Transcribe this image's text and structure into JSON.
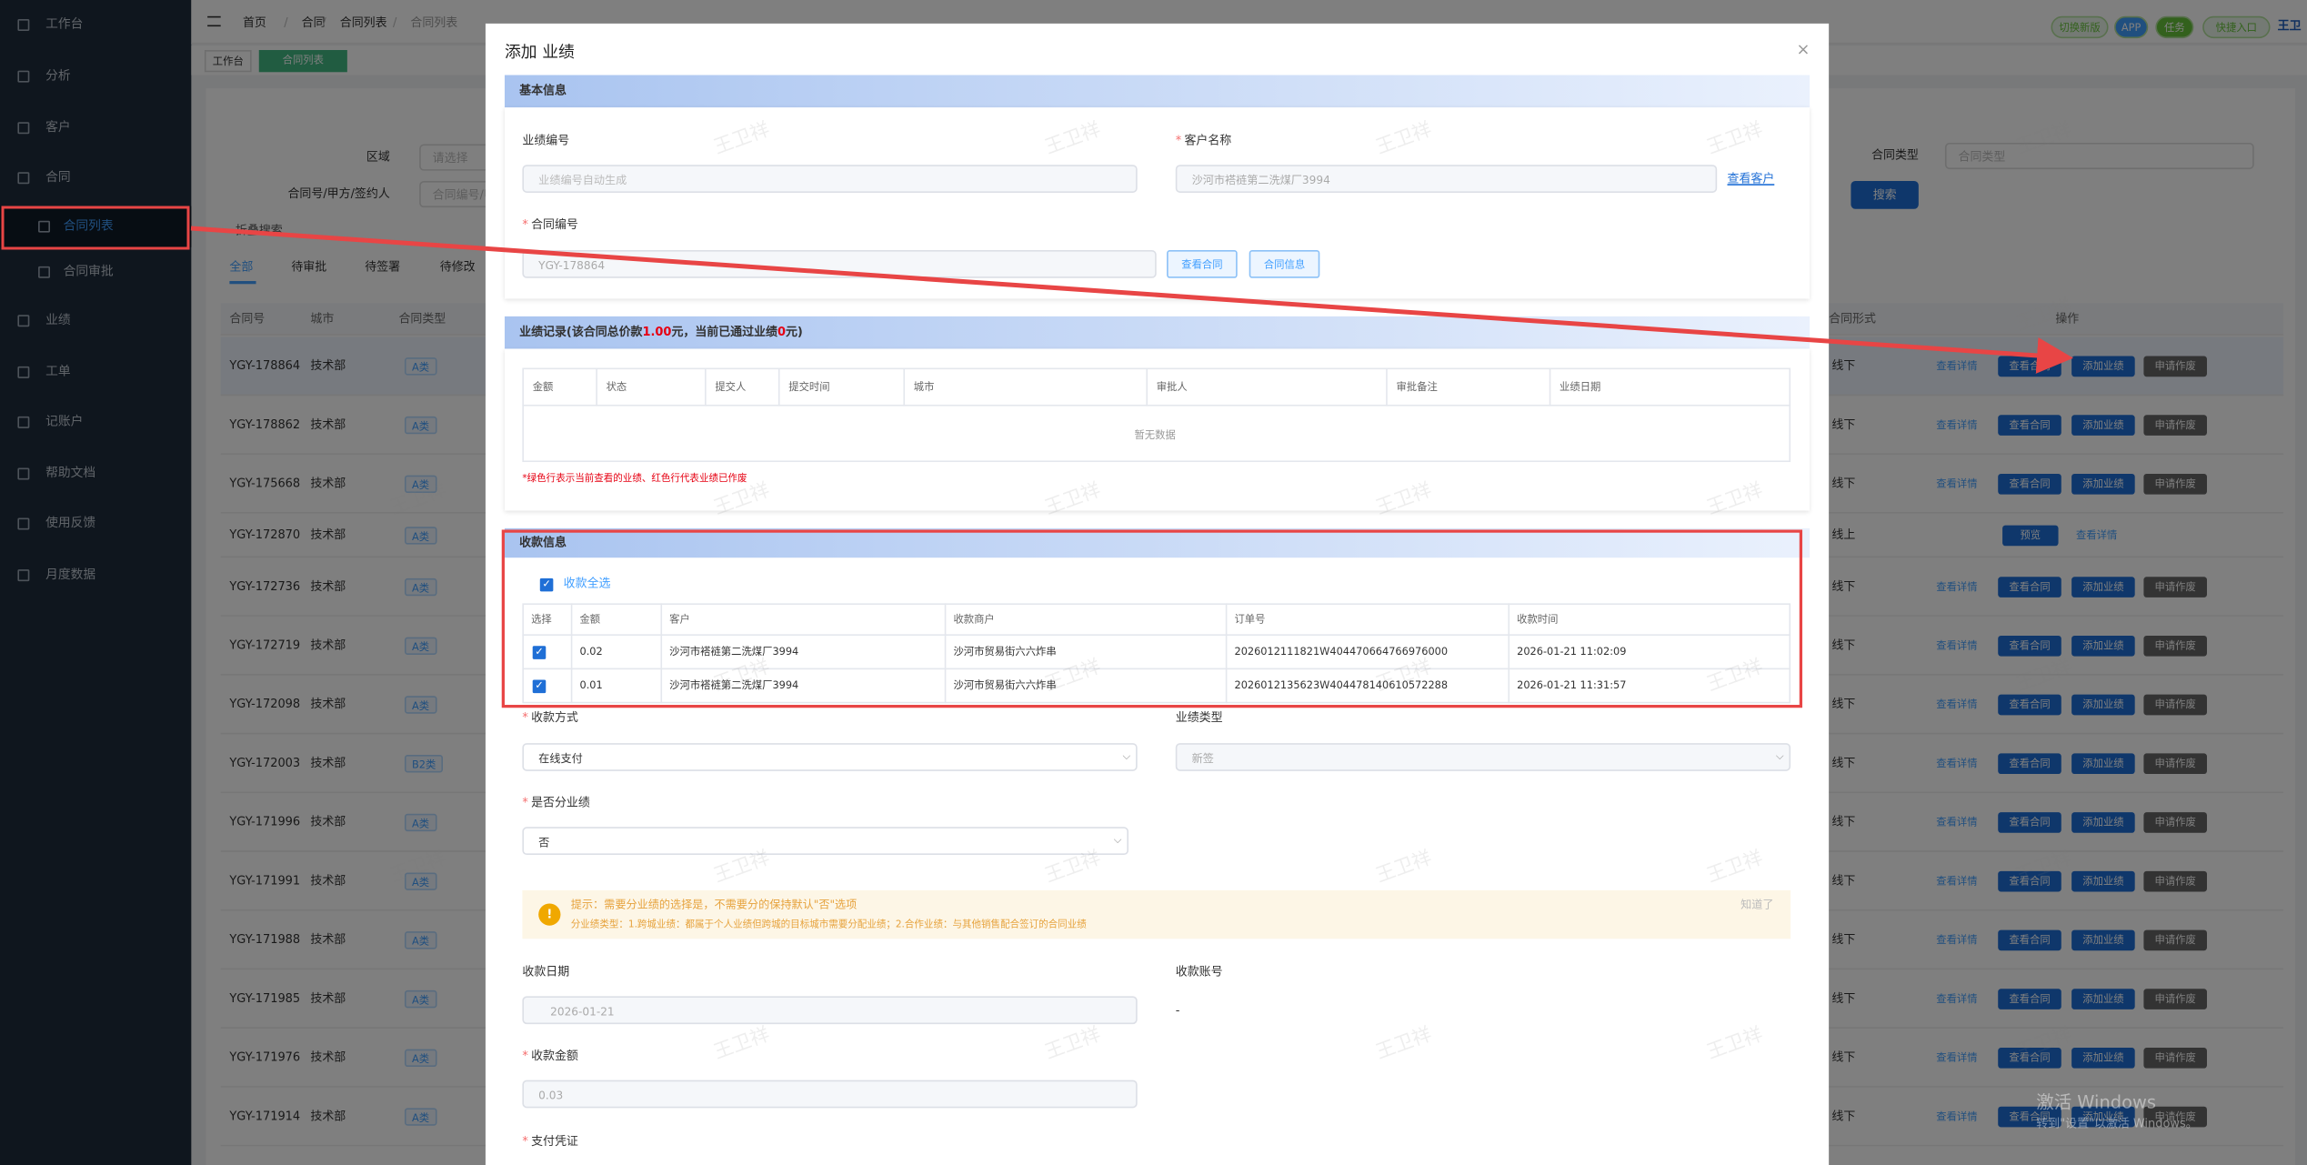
{
  "sidebar": {
    "items": [
      "工作台",
      "分析",
      "客户",
      "合同",
      "合同列表",
      "合同审批",
      "业绩",
      "工单",
      "记账户",
      "帮助文档",
      "使用反馈",
      "月度数据"
    ]
  },
  "header": {
    "breadcrumb": [
      "首页",
      "合同",
      "合同列表",
      "合同列表"
    ],
    "buttons": [
      "切换新版",
      "APP",
      "任务",
      "快捷入口"
    ],
    "user": "王卫"
  },
  "tabs": [
    "工作台",
    "合同列表"
  ],
  "filters": {
    "region_label": "区域",
    "region_placeholder": "请选择",
    "keyword_label": "合同号/甲方/签约人",
    "keyword_placeholder": "合同编号/甲方/签约人",
    "type_label": "合同类型",
    "type_placeholder": "合同类型",
    "search": "搜索",
    "collapse": "折叠搜索"
  },
  "list": {
    "status_tabs": [
      "全部",
      "待审批",
      "待签署",
      "待修改"
    ],
    "columns": [
      "合同号",
      "城市",
      "合同类型",
      "合同形式",
      "操作"
    ],
    "rows": [
      [
        "YGY-178864",
        "技术部",
        "A类",
        "线下"
      ],
      [
        "YGY-178862",
        "技术部",
        "A类",
        "线下"
      ],
      [
        "YGY-175668",
        "技术部",
        "A类",
        "线下"
      ],
      [
        "YGY-172870",
        "技术部",
        "A类",
        "线上"
      ],
      [
        "YGY-172736",
        "技术部",
        "A类",
        "线下"
      ],
      [
        "YGY-172719",
        "技术部",
        "A类",
        "线下"
      ],
      [
        "YGY-172098",
        "技术部",
        "A类",
        "线下"
      ],
      [
        "YGY-172003",
        "技术部",
        "B2类",
        "线下"
      ],
      [
        "YGY-171996",
        "技术部",
        "A类",
        "线下"
      ],
      [
        "YGY-171991",
        "技术部",
        "A类",
        "线下"
      ],
      [
        "YGY-171988",
        "技术部",
        "A类",
        "线下"
      ],
      [
        "YGY-171985",
        "技术部",
        "A类",
        "线下"
      ],
      [
        "YGY-171976",
        "技术部",
        "A类",
        "线下"
      ],
      [
        "YGY-171914",
        "技术部",
        "A类",
        "线下"
      ]
    ],
    "actions": [
      "查看详情",
      "查看合同",
      "添加业绩",
      "申请作废"
    ],
    "preview_actions": [
      "预览",
      "查看详情"
    ]
  },
  "modal": {
    "title": "添加 业绩",
    "basic": {
      "header": "基本信息",
      "perf_no_label": "业绩编号",
      "perf_no_placeholder": "业绩编号自动生成",
      "customer_label": "客户名称",
      "customer_value": "沙河市褡裢第二洗煤厂3994",
      "view_customer": "查看客户",
      "contract_label": "合同编号",
      "contract_value": "YGY-178864",
      "view_contract": "查看合同",
      "contract_info": "合同信息"
    },
    "records": {
      "header_parts": [
        "业绩记录(该合同总价款",
        "1.00",
        "元，当前已通过业绩",
        "0",
        "元)"
      ],
      "columns": [
        "金额",
        "状态",
        "提交人",
        "提交时间",
        "城市",
        "审批人",
        "审批备注",
        "业绩日期"
      ],
      "empty": "暂无数据",
      "note": "*绿色行表示当前查看的业绩、红色行代表业绩已作废"
    },
    "payment": {
      "header": "收款信息",
      "select_all": "收款全选",
      "columns": [
        "选择",
        "金额",
        "客户",
        "收款商户",
        "订单号",
        "收款时间"
      ],
      "rows": [
        [
          "0.02",
          "沙河市褡裢第二洗煤厂3994",
          "沙河市贸易街六六炸串",
          "2026012111821W404470664766976000",
          "2026-01-21 11:02:09"
        ],
        [
          "0.01",
          "沙河市褡裢第二洗煤厂3994",
          "沙河市贸易街六六炸串",
          "2026012135623W404478140610572288",
          "2026-01-21 11:31:57"
        ]
      ]
    },
    "form": {
      "method_label": "收款方式",
      "method_value": "在线支付",
      "perf_type_label": "业绩类型",
      "perf_type_value": "新签",
      "split_label": "是否分业绩",
      "split_value": "否",
      "tip_title": "提示：需要分业绩的选择是，不需要分的保持默认\"否\"选项",
      "tip_body": "分业绩类型：1.跨城业绩：都属于个人业绩但跨城的目标城市需要分配业绩；2.合作业绩：与其他销售配合签订的合同业绩",
      "tip_close": "知道了",
      "date_label": "收款日期",
      "date_value": "2026-01-21",
      "account_label": "收款账号",
      "account_value": "-",
      "amount_label": "收款金额",
      "amount_value": "0.03",
      "voucher_label": "支付凭证"
    }
  },
  "watermark": "王卫祥",
  "os_notice": [
    "激活 Windows",
    "转到\"设置\"以激活 Windows。"
  ]
}
